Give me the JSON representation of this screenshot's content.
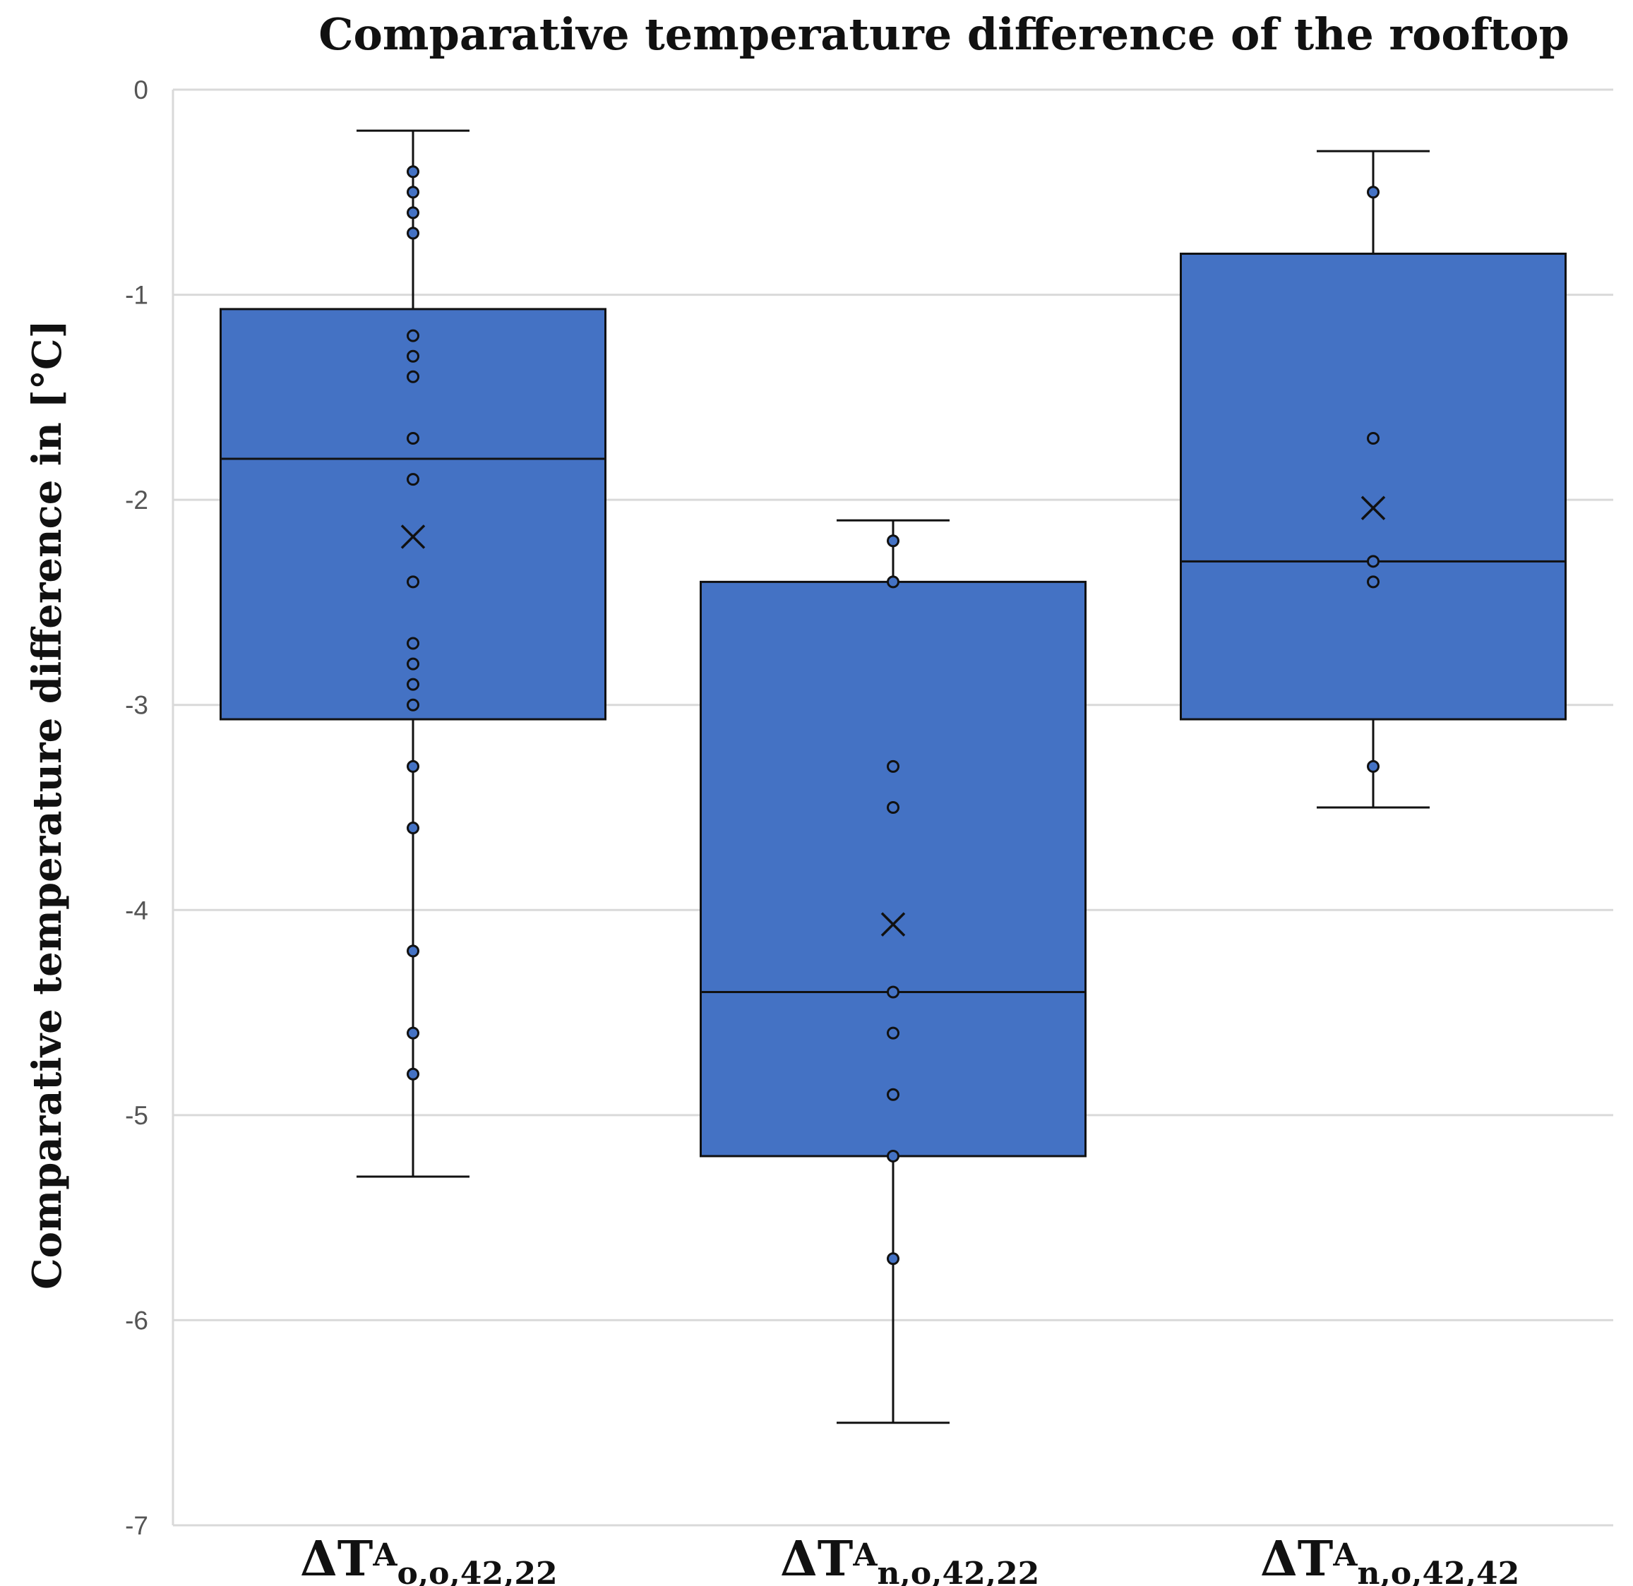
{
  "chart_data": {
    "type": "box",
    "title": "Comparative temperature difference of the rooftop",
    "ylabel": "Comparative temperature difference in [°C]",
    "xlabel": "",
    "ylim": [
      -7,
      0
    ],
    "yticks": [
      0,
      -1,
      -2,
      -3,
      -4,
      -5,
      -6,
      -7
    ],
    "ytick_labels": [
      "0",
      "-1",
      "-2",
      "-3",
      "-4",
      "-5",
      "-6",
      "-7"
    ],
    "grid": true,
    "box_color": "#4472C4",
    "series": [
      {
        "label_main": "ΔT",
        "label_sup": "A",
        "label_sub": "o,o,42,22",
        "whisker_max": -0.2,
        "q3": -1.07,
        "median": -1.8,
        "q1": -3.07,
        "whisker_min": -5.3,
        "mean": -2.18,
        "points": [
          -0.4,
          -0.5,
          -0.6,
          -0.7,
          -1.2,
          -1.3,
          -1.4,
          -1.7,
          -1.9,
          -2.4,
          -2.7,
          -2.8,
          -2.9,
          -3.0,
          -3.3,
          -3.6,
          -4.2,
          -4.6,
          -4.8
        ]
      },
      {
        "label_main": "ΔT",
        "label_sup": "A",
        "label_sub": "n,o,42,22",
        "whisker_max": -2.1,
        "q3": -2.4,
        "median": -4.4,
        "q1": -5.2,
        "whisker_min": -6.5,
        "mean": -4.07,
        "points": [
          -2.2,
          -2.4,
          -3.3,
          -3.5,
          -4.4,
          -4.6,
          -4.9,
          -5.2,
          -5.7
        ]
      },
      {
        "label_main": "ΔT",
        "label_sup": "A",
        "label_sub": "n,o,42,42",
        "whisker_max": -0.3,
        "q3": -0.8,
        "median": -2.3,
        "q1": -3.07,
        "whisker_min": -3.5,
        "mean": -2.04,
        "points": [
          -0.5,
          -1.7,
          -2.3,
          -2.4,
          -3.3
        ]
      }
    ]
  }
}
